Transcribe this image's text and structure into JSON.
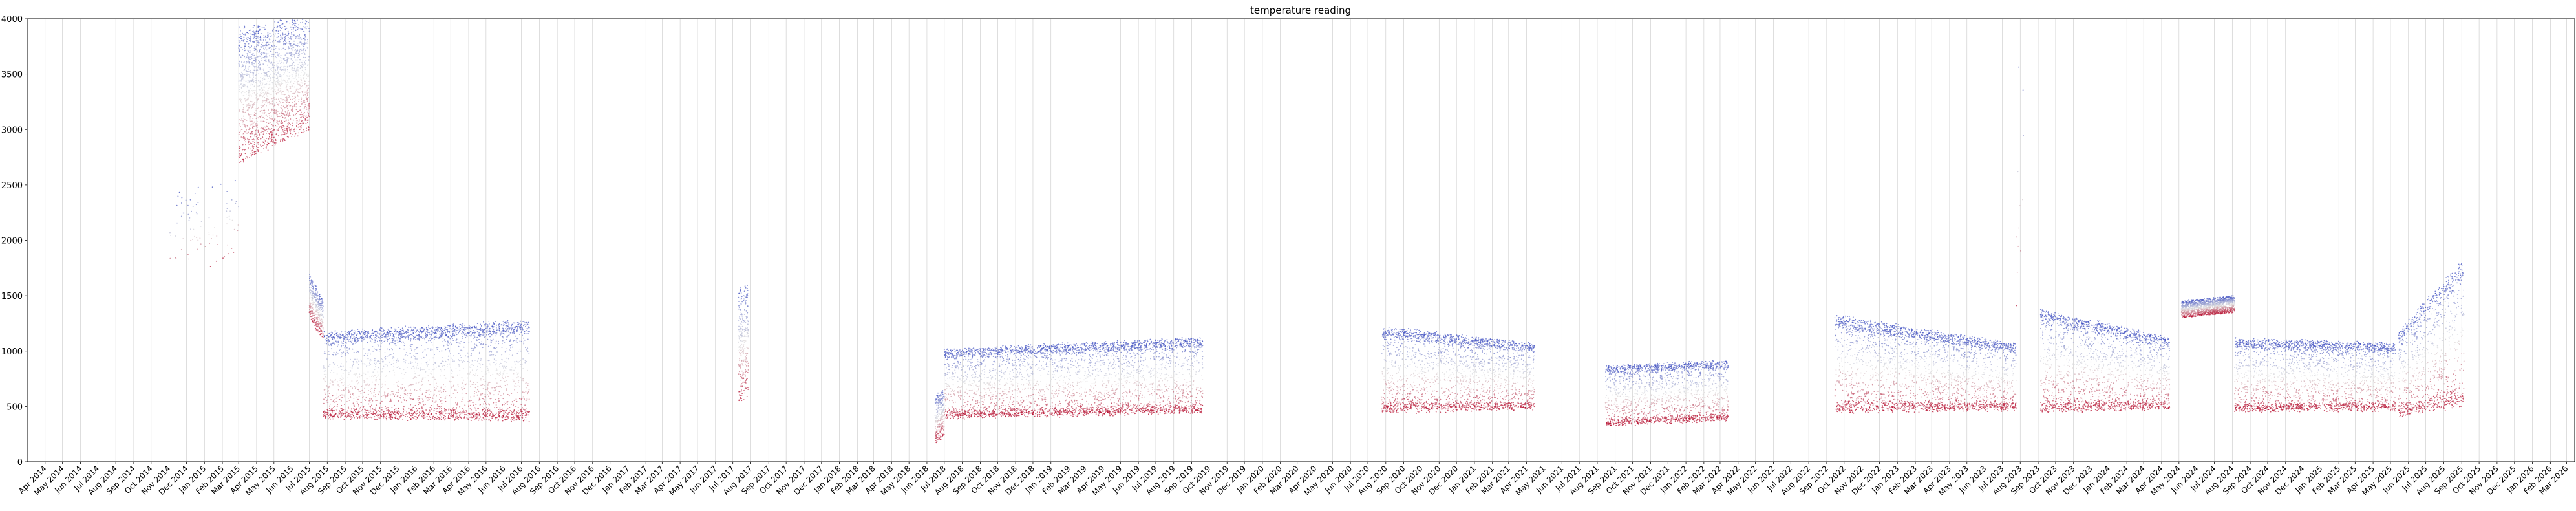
{
  "chart_data": {
    "type": "scatter",
    "title": "temperature reading",
    "xlabel": "",
    "ylabel": "",
    "ylim": [
      0,
      4000
    ],
    "x_range": [
      "2014-03-01",
      "2026-03-15"
    ],
    "y_ticks": [
      0,
      500,
      1000,
      1500,
      2000,
      2500,
      3000,
      3500,
      4000
    ],
    "x_tick_labels": [
      "Apr 2014",
      "May 2014",
      "Jun 2014",
      "Jul 2014",
      "Aug 2014",
      "Sep 2014",
      "Oct 2014",
      "Nov 2014",
      "Dec 2014",
      "Jan 2015",
      "Feb 2015",
      "Mar 2015",
      "Apr 2015",
      "May 2015",
      "Jun 2015",
      "Jul 2015",
      "Aug 2015",
      "Sep 2015",
      "Oct 2015",
      "Nov 2015",
      "Dec 2015",
      "Jan 2016",
      "Feb 2016",
      "Mar 2016",
      "Apr 2016",
      "May 2016",
      "Jun 2016",
      "Jul 2016",
      "Aug 2016",
      "Sep 2016",
      "Oct 2016",
      "Nov 2016",
      "Dec 2016",
      "Jan 2017",
      "Feb 2017",
      "Mar 2017",
      "Apr 2017",
      "May 2017",
      "Jun 2017",
      "Jul 2017",
      "Aug 2017",
      "Sep 2017",
      "Oct 2017",
      "Nov 2017",
      "Dec 2017",
      "Jan 2018",
      "Feb 2018",
      "Mar 2018",
      "Apr 2018",
      "May 2018",
      "Jun 2018",
      "Jul 2018",
      "Aug 2018",
      "Sep 2018",
      "Oct 2018",
      "Nov 2018",
      "Dec 2018",
      "Jan 2019",
      "Feb 2019",
      "Mar 2019",
      "Apr 2019",
      "May 2019",
      "Jun 2019",
      "Jul 2019",
      "Aug 2019",
      "Sep 2019",
      "Oct 2019",
      "Nov 2019",
      "Dec 2019",
      "Jan 2020",
      "Feb 2020",
      "Mar 2020",
      "Apr 2020",
      "May 2020",
      "Jun 2020",
      "Jul 2020",
      "Aug 2020",
      "Sep 2020",
      "Oct 2020",
      "Nov 2020",
      "Dec 2020",
      "Jan 2021",
      "Feb 2021",
      "Mar 2021",
      "Apr 2021",
      "May 2021",
      "Jun 2021",
      "Jul 2021",
      "Aug 2021",
      "Sep 2021",
      "Oct 2021",
      "Nov 2021",
      "Dec 2021",
      "Jan 2022",
      "Feb 2022",
      "Mar 2022",
      "Apr 2022",
      "May 2022",
      "Jun 2022",
      "Jul 2022",
      "Aug 2022",
      "Sep 2022",
      "Oct 2022",
      "Nov 2022",
      "Dec 2022",
      "Jan 2023",
      "Feb 2023",
      "Mar 2023",
      "Apr 2023",
      "May 2023",
      "Jun 2023",
      "Jul 2023",
      "Aug 2023",
      "Sep 2023",
      "Oct 2023",
      "Nov 2023",
      "Dec 2023",
      "Jan 2024",
      "Feb 2024",
      "Mar 2024",
      "Apr 2024",
      "May 2024",
      "Jun 2024",
      "Jul 2024",
      "Aug 2024",
      "Sep 2024",
      "Oct 2024",
      "Nov 2024",
      "Dec 2024",
      "Jan 2025",
      "Feb 2025",
      "Mar 2025",
      "Apr 2025",
      "May 2025",
      "Jun 2025",
      "Jul 2025",
      "Aug 2025",
      "Sep 2025",
      "Oct 2025",
      "Nov 2025",
      "Dec 2025",
      "Jan 2026",
      "Feb 2026",
      "Mar 2026"
    ],
    "grid": {
      "x": true,
      "y": false
    },
    "colormap": {
      "name": "coolwarm",
      "low": "#3b4cc0",
      "mid": "#dddddd",
      "high": "#b40426"
    },
    "segments": [
      {
        "start": "2014-11-01",
        "end": "2015-03-01",
        "upper": [
          2400,
          2600
        ],
        "lower": [
          1600,
          1800
        ],
        "mode": "sparse"
      },
      {
        "start": "2015-03-01",
        "end": "2015-07-01",
        "upper": [
          3900,
          4000
        ],
        "lower": [
          2700,
          3000
        ],
        "mode": "cloud"
      },
      {
        "start": "2015-07-01",
        "end": "2015-07-25",
        "upper": [
          1700,
          1450
        ],
        "lower": [
          1300,
          1100
        ],
        "mode": "cloud"
      },
      {
        "start": "2015-07-25",
        "end": "2016-07-15",
        "upper": [
          1150,
          1250
        ],
        "lower": [
          400,
          380
        ],
        "mode": "band"
      },
      {
        "start": "2017-07-10",
        "end": "2017-07-28",
        "upper": [
          1550,
          1600
        ],
        "lower": [
          550,
          600
        ],
        "mode": "cloud"
      },
      {
        "start": "2018-06-15",
        "end": "2018-07-01",
        "upper": [
          600,
          650
        ],
        "lower": [
          150,
          250
        ],
        "mode": "cloud"
      },
      {
        "start": "2018-07-01",
        "end": "2019-09-20",
        "upper": [
          1000,
          1100
        ],
        "lower": [
          400,
          450
        ],
        "mode": "band"
      },
      {
        "start": "2020-07-25",
        "end": "2021-04-15",
        "upper": [
          1200,
          1050
        ],
        "lower": [
          450,
          480
        ],
        "mode": "band"
      },
      {
        "start": "2021-08-15",
        "end": "2022-03-15",
        "upper": [
          850,
          900
        ],
        "lower": [
          330,
          380
        ],
        "mode": "band"
      },
      {
        "start": "2022-09-15",
        "end": "2023-07-25",
        "upper": [
          1300,
          1050
        ],
        "lower": [
          460,
          470
        ],
        "mode": "band"
      },
      {
        "start": "2023-07-25",
        "end": "2023-08-10",
        "upper": [
          3900,
          3500
        ],
        "lower": [
          1200,
          1300
        ],
        "mode": "sparse"
      },
      {
        "start": "2023-09-05",
        "end": "2024-04-15",
        "upper": [
          1350,
          1100
        ],
        "lower": [
          460,
          480
        ],
        "mode": "band"
      },
      {
        "start": "2024-05-05",
        "end": "2024-08-05",
        "upper": [
          1450,
          1500
        ],
        "lower": [
          1300,
          1350
        ],
        "mode": "cloud"
      },
      {
        "start": "2024-08-05",
        "end": "2025-05-10",
        "upper": [
          1100,
          1050
        ],
        "lower": [
          460,
          470
        ],
        "mode": "band"
      },
      {
        "start": "2025-05-15",
        "end": "2025-09-05",
        "upper": [
          1150,
          1800
        ],
        "lower": [
          420,
          520
        ],
        "mode": "band"
      }
    ]
  }
}
